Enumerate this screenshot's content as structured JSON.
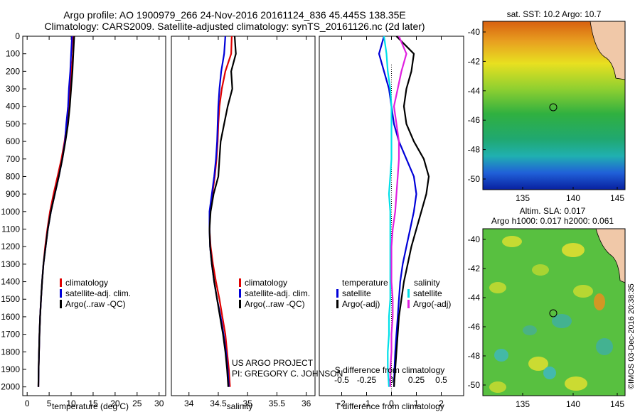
{
  "header": {
    "title": "Argo profile: AO 1900979_266 24-Nov-2016 20161124_836 45.445S 138.35E",
    "subtitle": "Climatology: CARS2009. Satellite-adjusted climatology: synTS_20161126.nc (2d later)"
  },
  "colors": {
    "clim": "#e00000",
    "sat": "#0000d8",
    "argo": "#000000",
    "sat_s": "#00e0e8",
    "argo_s": "#e020e0"
  },
  "depth_axis": {
    "ticks": [
      0,
      100,
      200,
      300,
      400,
      500,
      600,
      700,
      800,
      900,
      1000,
      1100,
      1200,
      1300,
      1400,
      1500,
      1600,
      1700,
      1800,
      1900,
      2000
    ],
    "range": [
      0,
      2050
    ]
  },
  "legend_main": {
    "clim": "climatology",
    "sat": "satellite-adj. clim.",
    "argo": "Argo(..raw -QC)"
  },
  "legend_diff": {
    "t_head": "temperature",
    "s_head": "salinity",
    "sat": "satellite",
    "argo": "Argo(-adj)"
  },
  "credit": {
    "line1": "US ARGO PROJECT",
    "line2": "PI: GREGORY C. JOHNSON"
  },
  "map_sst": {
    "title": "sat. SST: 10.2  Argo: 10.7",
    "yticks": [
      "-40",
      "-42",
      "-44",
      "-46",
      "-48",
      "-50"
    ],
    "xticks": [
      "135",
      "140",
      "145"
    ]
  },
  "map_sla": {
    "title1": "Altim. SLA: 0.017",
    "title2": "Argo h1000: 0.017  h2000: 0.061",
    "yticks": [
      "-40",
      "-42",
      "-44",
      "-46",
      "-48",
      "-50"
    ],
    "xticks": [
      "135",
      "140",
      "145"
    ]
  },
  "watermark": "©IMOS 03-Dec-2016 20:38:35",
  "chart_data": [
    {
      "type": "line",
      "xlabel": "temperature (deg C)",
      "ylabel": "",
      "xlim": [
        -1,
        31.5
      ],
      "ylim": [
        2050,
        0
      ],
      "xticks": [
        0,
        5,
        10,
        15,
        20,
        25,
        30
      ],
      "series": [
        {
          "name": "climatology",
          "key": "clim",
          "x": [
            10.5,
            10.4,
            10.1,
            9.8,
            9.5,
            9.0,
            8.5,
            7.8,
            6.9,
            6.0,
            5.2,
            4.6,
            4.1,
            3.7,
            3.4,
            3.15,
            2.95,
            2.8,
            2.7,
            2.6,
            2.55
          ],
          "y": [
            0,
            100,
            200,
            300,
            400,
            500,
            600,
            700,
            800,
            900,
            1000,
            1100,
            1200,
            1300,
            1400,
            1500,
            1600,
            1700,
            1800,
            1900,
            2000
          ]
        },
        {
          "name": "satellite-adj. clim.",
          "key": "sat",
          "x": [
            10.2,
            10.0,
            9.8,
            9.5,
            9.3,
            8.9,
            8.6,
            8.0,
            7.2,
            6.3,
            5.4,
            4.7,
            4.2,
            3.7,
            3.4,
            3.15,
            2.95,
            2.8,
            2.7,
            2.6,
            2.55
          ],
          "y": [
            0,
            100,
            200,
            300,
            400,
            500,
            600,
            700,
            800,
            900,
            1000,
            1100,
            1200,
            1300,
            1400,
            1500,
            1600,
            1700,
            1800,
            1900,
            2000
          ]
        },
        {
          "name": "Argo(..raw -QC)",
          "key": "argo",
          "x": [
            10.7,
            10.5,
            10.3,
            10.0,
            9.7,
            9.3,
            8.7,
            8.0,
            7.2,
            6.3,
            5.4,
            4.7,
            4.2,
            3.7,
            3.4,
            3.15,
            2.95,
            2.8,
            2.7,
            2.6,
            2.55
          ],
          "y": [
            0,
            100,
            200,
            300,
            400,
            500,
            600,
            700,
            800,
            900,
            1000,
            1100,
            1200,
            1300,
            1400,
            1500,
            1600,
            1700,
            1800,
            1900,
            2000
          ]
        }
      ]
    },
    {
      "type": "line",
      "xlabel": "salinity",
      "ylabel": "",
      "xlim": [
        33.7,
        36.15
      ],
      "ylim": [
        2050,
        0
      ],
      "xticks": [
        34,
        34.5,
        35,
        35.5,
        36
      ],
      "series": [
        {
          "name": "climatology",
          "key": "clim",
          "x": [
            34.73,
            34.72,
            34.62,
            34.56,
            34.52,
            34.5,
            34.49,
            34.47,
            34.44,
            34.4,
            34.36,
            34.35,
            34.37,
            34.41,
            34.46,
            34.52,
            34.57,
            34.62,
            34.65,
            34.68,
            34.7
          ],
          "y": [
            0,
            100,
            200,
            300,
            400,
            500,
            600,
            700,
            800,
            900,
            1000,
            1100,
            1200,
            1300,
            1400,
            1500,
            1600,
            1700,
            1800,
            1900,
            2000
          ]
        },
        {
          "name": "satellite-adj. clim.",
          "key": "sat",
          "x": [
            34.62,
            34.6,
            34.55,
            34.52,
            34.5,
            34.49,
            34.48,
            34.46,
            34.43,
            34.39,
            34.35,
            34.35,
            34.36,
            34.39,
            34.43,
            34.48,
            34.54,
            34.59,
            34.63,
            34.66,
            34.68
          ],
          "y": [
            0,
            100,
            200,
            300,
            400,
            500,
            600,
            700,
            800,
            900,
            1000,
            1100,
            1200,
            1300,
            1400,
            1500,
            1600,
            1700,
            1800,
            1900,
            2000
          ]
        },
        {
          "name": "Argo(..raw -QC)",
          "key": "argo",
          "x": [
            34.78,
            34.8,
            34.72,
            34.74,
            34.66,
            34.6,
            34.54,
            34.52,
            34.5,
            34.42,
            34.37,
            34.35,
            34.36,
            34.39,
            34.43,
            34.48,
            34.53,
            34.58,
            34.62,
            34.65,
            34.67
          ],
          "y": [
            0,
            100,
            200,
            300,
            400,
            500,
            600,
            700,
            800,
            900,
            1000,
            1100,
            1200,
            1300,
            1400,
            1500,
            1600,
            1700,
            1800,
            1900,
            2000
          ]
        }
      ]
    },
    {
      "type": "line",
      "xlabel": "T difference from climatology",
      "x2label": "S difference from climatology",
      "ylabel": "",
      "xlim": [
        -2.9,
        2.9
      ],
      "ylim": [
        2050,
        0
      ],
      "xticks": [
        -2,
        -1,
        0,
        1,
        2
      ],
      "x2ticks": [
        "-0.5",
        "-0.25",
        "0",
        "0.25",
        "0.5"
      ],
      "series": [
        {
          "name": "temperature satellite",
          "key": "sat",
          "x": [
            -0.3,
            -0.5,
            -0.3,
            -0.1,
            0.0,
            0.1,
            0.3,
            0.6,
            0.9,
            1.0,
            0.9,
            0.75,
            0.6,
            0.45,
            0.35,
            0.3,
            0.25,
            0.2,
            0.15,
            0.12,
            0.1
          ],
          "y": [
            0,
            100,
            200,
            300,
            400,
            500,
            600,
            700,
            800,
            900,
            1000,
            1100,
            1200,
            1300,
            1400,
            1500,
            1600,
            1700,
            1800,
            1900,
            2000
          ]
        },
        {
          "name": "temperature Argo(-adj)",
          "key": "argo",
          "x": [
            0.2,
            0.9,
            0.8,
            0.6,
            0.5,
            0.6,
            0.9,
            1.3,
            1.5,
            1.4,
            1.2,
            1.0,
            0.8,
            0.65,
            0.5,
            0.4,
            0.3,
            0.25,
            0.2,
            0.15,
            0.1
          ],
          "y": [
            0,
            100,
            200,
            300,
            400,
            500,
            600,
            700,
            800,
            900,
            1000,
            1100,
            1200,
            1300,
            1400,
            1500,
            1600,
            1700,
            1800,
            1900,
            2000
          ]
        },
        {
          "name": "salinity satellite",
          "key": "sat_s",
          "x": [
            -0.3,
            -0.2,
            -0.15,
            -0.05,
            0.0,
            0.0,
            0.0,
            0.0,
            -0.05,
            -0.1,
            -0.05,
            -0.05,
            -0.05,
            -0.05,
            -0.05,
            -0.05,
            -0.1,
            -0.1,
            -0.15,
            -0.15,
            -0.1
          ],
          "y": [
            0,
            100,
            200,
            300,
            400,
            500,
            600,
            700,
            800,
            900,
            1000,
            1100,
            1200,
            1300,
            1400,
            1500,
            1600,
            1700,
            1800,
            1900,
            2000
          ]
        },
        {
          "name": "salinity Argo(-adj)",
          "key": "argo_s",
          "x": [
            0.3,
            0.6,
            0.4,
            0.25,
            0.1,
            0.2,
            0.3,
            0.3,
            0.25,
            0.2,
            0.15,
            0.05,
            0.0,
            0.0,
            0.0,
            0.05,
            0.05,
            0.0,
            0.0,
            -0.05,
            -0.05
          ],
          "y": [
            0,
            100,
            200,
            300,
            400,
            500,
            600,
            700,
            800,
            900,
            1000,
            1100,
            1200,
            1300,
            1400,
            1500,
            1600,
            1700,
            1800,
            1900,
            2000
          ]
        }
      ]
    }
  ]
}
